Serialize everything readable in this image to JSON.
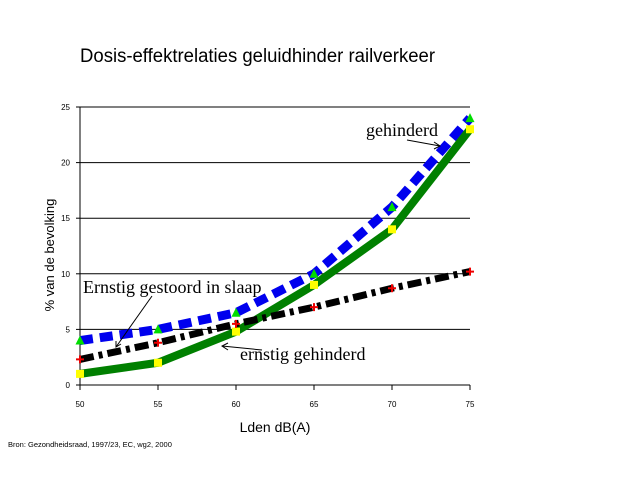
{
  "chart_data": {
    "type": "line",
    "title": "Dosis-effektrelaties geluidhinder railverkeer",
    "xlabel": "Lden dB(A)",
    "ylabel": "% van de bevolking",
    "xlim": [
      50,
      75
    ],
    "ylim": [
      0,
      25
    ],
    "x_ticks": [
      50,
      55,
      60,
      65,
      70,
      75
    ],
    "y_ticks": [
      0,
      5,
      10,
      15,
      20,
      25
    ],
    "grid": "horizontal",
    "source_note": "Bron: Gezondheidsraad, 1997/23, EC, wg2, 2000",
    "series": [
      {
        "name": "gehinderd",
        "color": "#0000ee",
        "dash": "dashed",
        "marker_color": "#00dd00",
        "marker": "triangle",
        "x": [
          50,
          55,
          60,
          65,
          70,
          75
        ],
        "values": [
          4.0,
          5.0,
          6.5,
          10.0,
          16.0,
          24.0
        ]
      },
      {
        "name": "ernstig gehinderd",
        "color": "#008000",
        "dash": "solid",
        "marker_color": "#ffff00",
        "marker": "square",
        "x": [
          50,
          55,
          60,
          65,
          70,
          75
        ],
        "values": [
          1.0,
          2.0,
          4.8,
          9.0,
          14.0,
          23.0
        ]
      },
      {
        "name": "Ernstig gestoord in slaap",
        "color": "#000000",
        "dash": "dashdot",
        "marker_color": "#ee0000",
        "marker": "plus",
        "x": [
          50,
          55,
          60,
          65,
          70,
          75
        ],
        "values": [
          2.3,
          3.8,
          5.5,
          7.0,
          8.7,
          10.2
        ]
      }
    ]
  }
}
